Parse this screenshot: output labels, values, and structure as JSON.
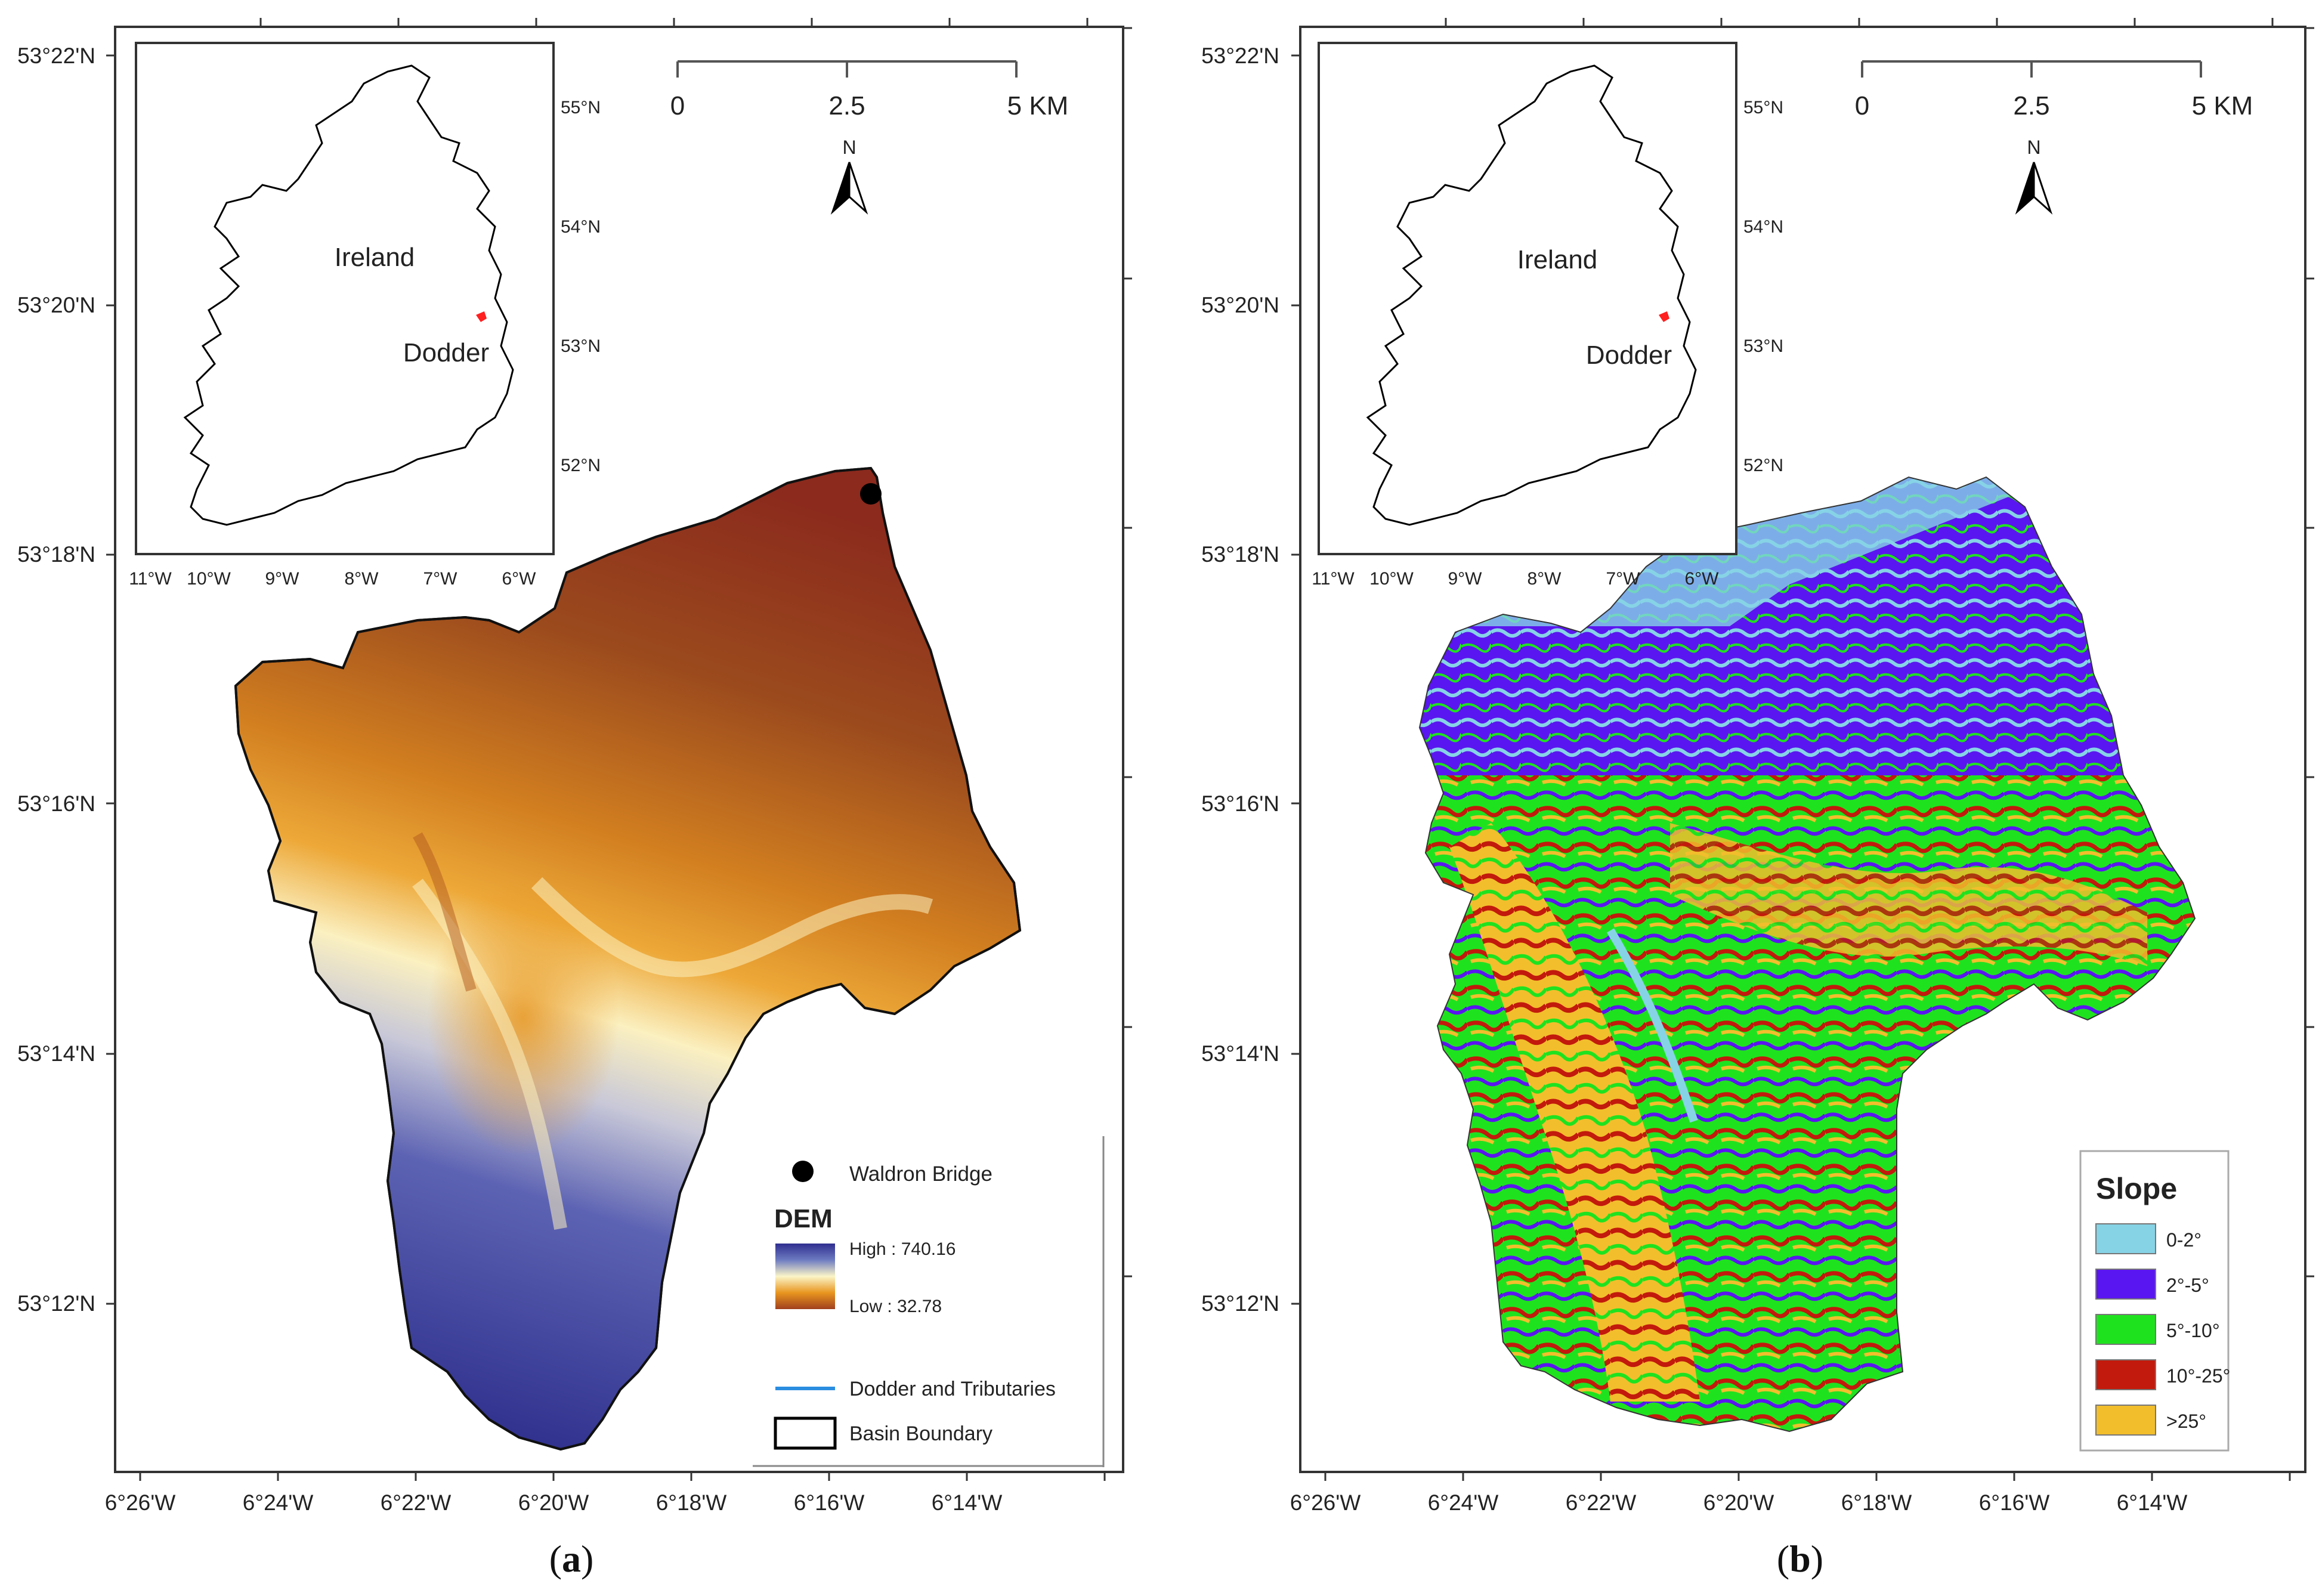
{
  "panels": [
    {
      "id": "a",
      "caption_prefix": "(",
      "caption_letter": "a",
      "caption_suffix": ")",
      "lat_labels": [
        "53°22'N",
        "53°20'N",
        "53°18'N",
        "53°16'N",
        "53°14'N",
        "53°12'N"
      ],
      "lon_labels": [
        "6°26'W",
        "6°24'W",
        "6°22'W",
        "6°20'W",
        "6°18'W",
        "6°16'W",
        "6°14'W"
      ],
      "inset": {
        "country_label": "Ireland",
        "basin_label": "Dodder",
        "lat_labels": [
          "55°N",
          "54°N",
          "53°N",
          "52°N"
        ],
        "lon_labels": [
          "11°W",
          "10°W",
          "9°W",
          "8°W",
          "7°W",
          "6°W"
        ]
      },
      "scalebar": {
        "labels": [
          "0",
          "2.5",
          "5 KM"
        ]
      },
      "north_label": "N",
      "legend": {
        "station_label": "Waldron Bridge",
        "dem_title": "DEM",
        "dem_high": "High : 740.16",
        "dem_low": "Low : 32.78",
        "river_label": "Dodder and Tributaries",
        "boundary_label": "Basin Boundary"
      }
    },
    {
      "id": "b",
      "caption_prefix": "(",
      "caption_letter": "b",
      "caption_suffix": ")",
      "lat_labels": [
        "53°22'N",
        "53°20'N",
        "53°18'N",
        "53°16'N",
        "53°14'N",
        "53°12'N"
      ],
      "lon_labels": [
        "6°26'W",
        "6°24'W",
        "6°22'W",
        "6°20'W",
        "6°18'W",
        "6°16'W",
        "6°14'W"
      ],
      "inset": {
        "country_label": "Ireland",
        "basin_label": "Dodder",
        "lat_labels": [
          "55°N",
          "54°N",
          "53°N",
          "52°N"
        ],
        "lon_labels": [
          "11°W",
          "10°W",
          "9°W",
          "8°W",
          "7°W",
          "6°W"
        ]
      },
      "scalebar": {
        "labels": [
          "0",
          "2.5",
          "5 KM"
        ]
      },
      "north_label": "N",
      "legend": {
        "title": "Slope",
        "classes": [
          {
            "label": "0-2°",
            "color": "#86d3e6"
          },
          {
            "label": "2°-5°",
            "color": "#5a16f0"
          },
          {
            "label": "5°-10°",
            "color": "#1fe21f"
          },
          {
            "label": "10°-25°",
            "color": "#c21a0c"
          },
          {
            "label": ">25°",
            "color": "#f2be2c"
          }
        ]
      }
    }
  ],
  "colors": {
    "dem_high": "#3a3d9e",
    "dem_mid": "#fbf5c8",
    "dem_orange": "#e8961f",
    "dem_low": "#8b2a1d",
    "river": "#2a8de0",
    "basin_marker": "#ff2020"
  }
}
